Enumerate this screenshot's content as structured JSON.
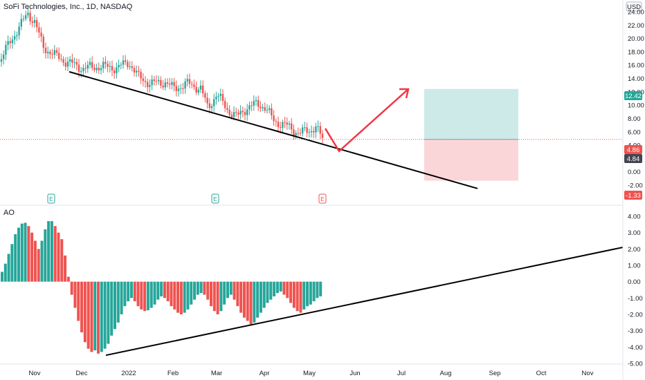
{
  "colors": {
    "up": "#26a69a",
    "down": "#ef5350",
    "arrow": "#f23645",
    "line": "#000000",
    "profit": "#b2dfdb",
    "loss": "#f8c8cc",
    "last_badge": "#ef5350",
    "target_badge": "#26a69a",
    "stop_badge": "#ef5350",
    "axis_text": "#131722"
  },
  "header": {
    "title": "SoFi Technologies, Inc., 1D, NASDAQ",
    "currency": "USD"
  },
  "pane_labels": {
    "oscillator": "AO"
  },
  "earnings_icon_label": "E",
  "badges": {
    "target": "12.42",
    "last": "4.86",
    "prev": "4.84",
    "stop": "-1.33"
  },
  "chart_data": [
    {
      "type": "candlestick",
      "title": "SoFi Technologies, Inc., 1D, NASDAQ",
      "y_axis_label": "USD",
      "ylim": [
        -2,
        24
      ],
      "y_ticks": [
        "24.00",
        "22.00",
        "20.00",
        "18.00",
        "16.00",
        "14.00",
        "12.00",
        "10.00",
        "8.00",
        "6.00",
        "4.00",
        "2.00",
        "0.00",
        "-2.00"
      ],
      "x_ticks": [
        "Nov",
        "Dec",
        "2022",
        "Feb",
        "Mar",
        "Apr",
        "May",
        "Jun",
        "Jul",
        "Aug",
        "Sep",
        "Oct",
        "Nov"
      ],
      "grid": false,
      "earnings_markers": [
        "Nov",
        "Mar",
        "May"
      ],
      "approx_prices_by_month": {
        "Oct end": 16.5,
        "Nov mid": 23.8,
        "Dec start": 17.5,
        "2022 start": 15.6,
        "Feb start": 13,
        "Mar start": 11,
        "Apr start": 9.5,
        "May start": 7,
        "last": 4.86
      },
      "annotations": {
        "support_trendline": {
          "from": [
            "Nov 21",
            15.0
          ],
          "to": [
            "Aug 24",
            -2.5
          ]
        },
        "projected_move": {
          "pivot": [
            "May 20",
            3.1
          ],
          "target": [
            "Jul 15",
            12.4
          ]
        },
        "long_position": {
          "entry": 4.86,
          "target": 12.42,
          "stop": -1.33,
          "start": "Jul 15",
          "end": "Sep 15"
        }
      }
    },
    {
      "type": "histogram",
      "title": "AO",
      "ylim": [
        -5,
        4
      ],
      "y_ticks": [
        "4.00",
        "3.00",
        "2.00",
        "1.00",
        "0.00",
        "-1.00",
        "-2.00",
        "-3.00",
        "-4.00",
        "-5.00"
      ],
      "approx_values": [
        0.6,
        1.1,
        1.7,
        2.3,
        2.9,
        3.3,
        3.55,
        3.6,
        3.4,
        3.0,
        2.5,
        2.0,
        2.5,
        3.2,
        3.7,
        3.7,
        3.4,
        3.0,
        2.6,
        1.6,
        0.3,
        -0.8,
        -1.6,
        -2.4,
        -3.1,
        -3.7,
        -4.1,
        -4.3,
        -4.2,
        -4.4,
        -4.3,
        -4.1,
        -3.8,
        -3.3,
        -2.9,
        -2.5,
        -2.0,
        -1.5,
        -1.2,
        -1.0,
        -1.2,
        -1.5,
        -1.7,
        -1.8,
        -1.75,
        -1.6,
        -1.4,
        -1.1,
        -0.9,
        -1.0,
        -1.2,
        -1.5,
        -1.7,
        -1.9,
        -2.0,
        -1.9,
        -1.7,
        -1.4,
        -1.1,
        -0.8,
        -0.7,
        -0.8,
        -1.1,
        -1.5,
        -1.8,
        -2.0,
        -1.8,
        -1.4,
        -1.0,
        -0.8,
        -1.1,
        -1.5,
        -1.9,
        -2.2,
        -2.4,
        -2.6,
        -2.5,
        -2.2,
        -1.9,
        -1.6,
        -1.3,
        -1.1,
        -0.9,
        -0.7,
        -0.6,
        -0.8,
        -1.0,
        -1.3,
        -1.6,
        -1.8,
        -1.9,
        -1.7,
        -1.5,
        -1.4,
        -1.2,
        -1.0,
        -0.9
      ],
      "annotations": {
        "trendline": {
          "from": [
            "Dec 20",
            -4.5
          ],
          "to": [
            "Nov end",
            2.1
          ]
        }
      }
    }
  ]
}
